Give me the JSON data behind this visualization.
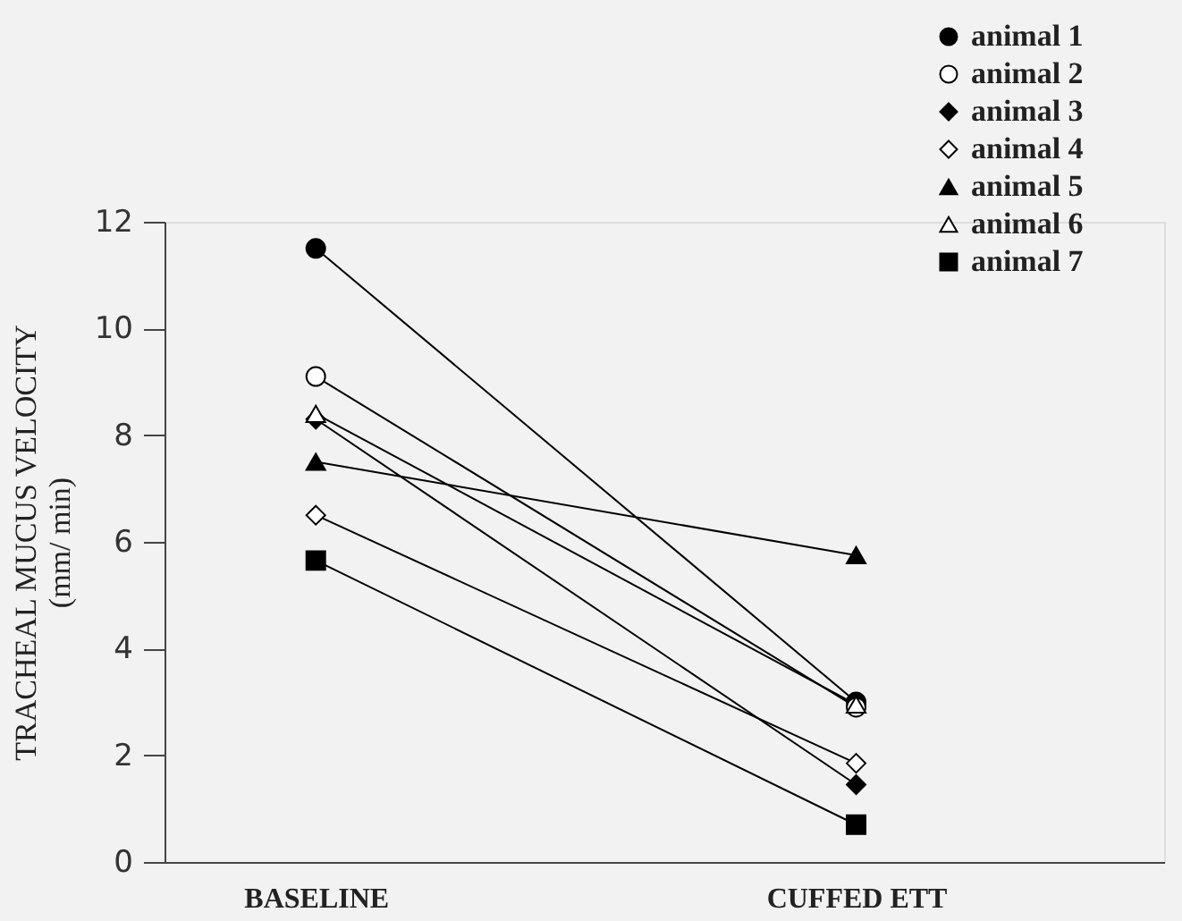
{
  "chart_data": {
    "type": "line",
    "ylabel": "TRACHEAL MUCUS VELOCITY\n(mm/ min)",
    "categories": [
      "BASELINE",
      "CUFFED ETT"
    ],
    "series": [
      {
        "name": "animal 1",
        "color": "#000000",
        "marker": "circle",
        "values": [
          11.5,
          3.0
        ]
      },
      {
        "name": "animal 2",
        "color": "#ffffff",
        "marker": "circle",
        "values": [
          9.1,
          2.9
        ]
      },
      {
        "name": "animal 3",
        "color": "#000000",
        "marker": "diamond",
        "values": [
          8.3,
          1.45
        ]
      },
      {
        "name": "animal 4",
        "color": "#ffffff",
        "marker": "diamond",
        "values": [
          6.5,
          1.85
        ]
      },
      {
        "name": "animal 5",
        "color": "#000000",
        "marker": "triangle",
        "values": [
          7.5,
          5.75
        ]
      },
      {
        "name": "animal 6",
        "color": "#ffffff",
        "marker": "triangle",
        "values": [
          8.4,
          2.95
        ]
      },
      {
        "name": "animal 7",
        "color": "#000000",
        "marker": "square",
        "values": [
          5.65,
          0.7
        ]
      }
    ],
    "ylim": [
      0,
      12
    ],
    "yticks": [
      0,
      2,
      4,
      6,
      8,
      10,
      12
    ],
    "grid": false,
    "legend": "top right",
    "line_style": "solid"
  }
}
